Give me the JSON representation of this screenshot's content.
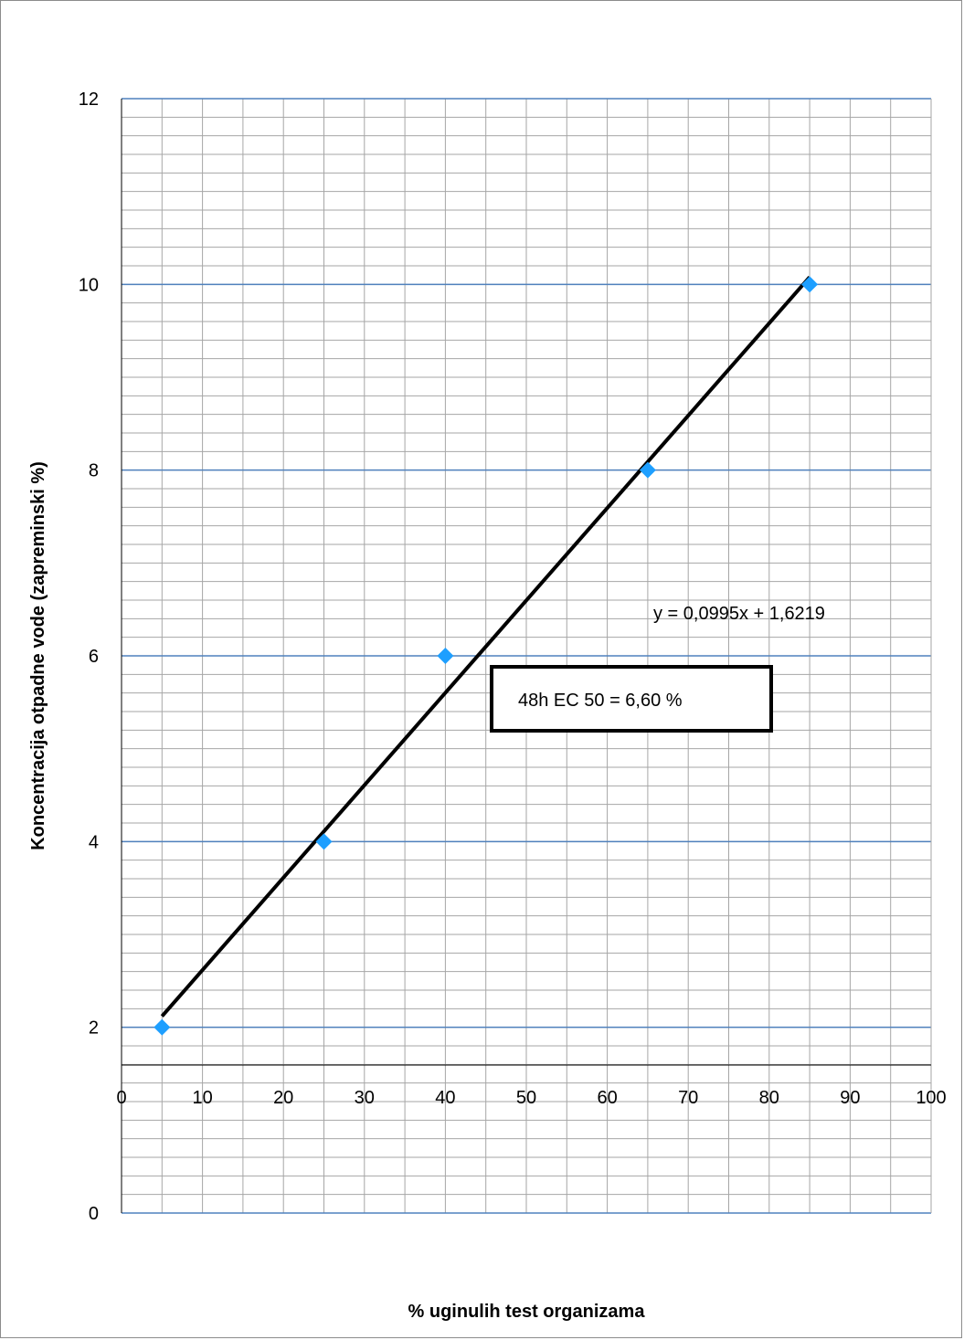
{
  "chart_data": {
    "type": "scatter",
    "title": "",
    "xlabel": "% uginulih test organizama",
    "ylabel": "Koncentracija otpadne vode (zapreminski %)",
    "xlim": [
      0,
      100
    ],
    "ylim": [
      0,
      12
    ],
    "x_ticks": [
      "0",
      "10",
      "20",
      "30",
      "40",
      "50",
      "60",
      "70",
      "80",
      "90",
      "100"
    ],
    "y_ticks": [
      "0",
      "2",
      "4",
      "6",
      "8",
      "10",
      "12"
    ],
    "grid": true,
    "legend": "none",
    "series": [
      {
        "x": [
          5,
          25,
          40,
          65,
          85
        ],
        "y": [
          2,
          4,
          6,
          8,
          10
        ],
        "marker": "diamond",
        "color": "#1e9fff"
      }
    ],
    "trendline": {
      "type": "linear",
      "slope": 0.0995,
      "intercept": 1.6219,
      "x_range": [
        5,
        85
      ],
      "color": "#000000"
    },
    "equation_label": "y = 0,0995x + 1,6219",
    "result_label": "48h EC 50 =  6,60 %",
    "colors": {
      "grid_major": "#4f81bd",
      "grid_minor": "#a6a6a6",
      "marker": "#1e9fff",
      "trendline": "#000000"
    }
  }
}
